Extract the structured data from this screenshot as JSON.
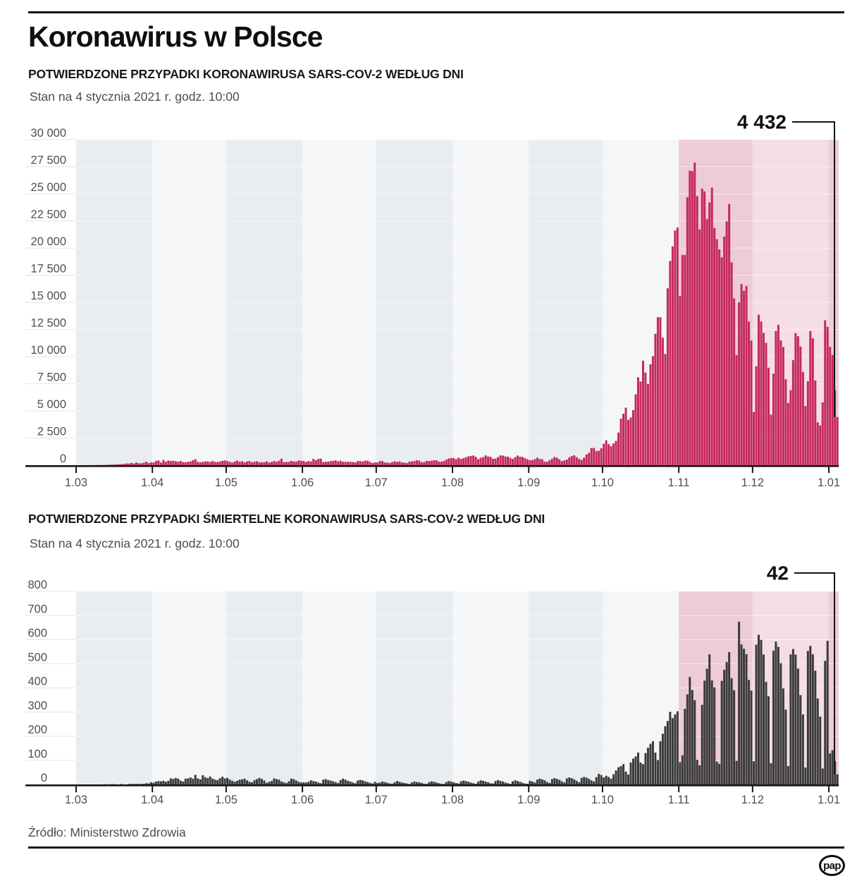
{
  "page": {
    "title": "Koronawirus w Polsce",
    "source": "Źródło: Ministerstwo Zdrowia",
    "logo_text": "pap"
  },
  "chart_data": [
    {
      "type": "bar",
      "title": "POTWIERDZONE PRZYPADKI KORONAWIRUSA SARS-COV-2 WEDŁUG DNI",
      "subtitle": "Stan na 4 stycznia 2021 r. godz. 10:00",
      "annotation": "4 432",
      "ylim": [
        0,
        30000
      ],
      "y_step": 2500,
      "y_tick_labels": [
        "0",
        "2 500",
        "5 000",
        "7 500",
        "10 000",
        "12 500",
        "15 000",
        "17 500",
        "20 000",
        "22 500",
        "25 000",
        "27 500",
        "30 000"
      ],
      "x_tick_labels": [
        "1.03",
        "1.04",
        "1.05",
        "1.06",
        "1.07",
        "1.08",
        "1.09",
        "1.10",
        "1.11",
        "1.12",
        "1.01"
      ],
      "month_days": [
        31,
        30,
        31,
        30,
        31,
        31,
        30,
        31,
        30,
        31,
        4
      ],
      "month_band_colors": [
        "#e9edf0",
        "#f5f6f8",
        "#e9edf0",
        "#f5f6f8",
        "#e9edf0",
        "#f5f6f8",
        "#e9edf0",
        "#f5f6f8",
        "#edccd5",
        "#f4dde4",
        "#edccd5"
      ],
      "bar_color": "#c5285c",
      "grid_on": true,
      "legend": "none",
      "values": [
        0,
        0,
        0,
        1,
        1,
        3,
        5,
        11,
        8,
        19,
        17,
        21,
        33,
        38,
        52,
        60,
        69,
        78,
        98,
        115,
        158,
        150,
        206,
        152,
        249,
        170,
        168,
        224,
        324,
        193,
        256,
        243,
        392,
        437,
        244,
        475,
        311,
        435,
        380,
        401,
        370,
        318,
        388,
        286,
        268,
        313,
        336,
        461,
        545,
        306,
        263,
        300,
        347,
        342,
        294,
        381,
        306,
        285,
        339,
        392,
        437,
        378,
        306,
        235,
        340,
        425,
        315,
        363,
        255,
        345,
        383,
        273,
        321,
        364,
        277,
        268,
        272,
        356,
        235,
        305,
        383,
        306,
        404,
        595,
        276,
        299,
        305,
        399,
        343,
        336,
        436,
        416,
        383,
        300,
        379,
        337,
        576,
        456,
        575,
        599,
        283,
        319,
        331,
        379,
        397,
        440,
        350,
        407,
        317,
        313,
        314,
        304,
        293,
        256,
        382,
        374,
        339,
        418,
        410,
        305,
        193,
        267,
        239,
        380,
        371,
        257,
        231,
        193,
        279,
        355,
        306,
        344,
        257,
        234,
        191,
        328,
        352,
        380,
        458,
        423,
        279,
        275,
        399,
        382,
        417,
        449,
        458,
        337,
        326,
        382,
        512,
        615,
        657,
        658,
        548,
        680,
        572,
        640,
        726,
        809,
        843,
        892,
        762,
        551,
        682,
        731,
        903,
        795,
        767,
        584,
        605,
        749,
        903,
        879,
        800,
        786,
        674,
        571,
        737,
        887,
        785,
        758,
        646,
        552,
        454,
        471,
        554,
        691,
        574,
        538,
        330,
        312,
        463,
        594,
        757,
        693,
        538,
        377,
        436,
        512,
        711,
        837,
        910,
        736,
        574,
        489,
        688,
        974,
        1136,
        1584,
        1587,
        1306,
        1326,
        1552,
        1967,
        2292,
        1934,
        1741,
        2006,
        2236,
        3003,
        4280,
        4739,
        5300,
        4178,
        4394,
        5068,
        6526,
        8099,
        7705,
        9622,
        8536,
        7482,
        9291,
        10040,
        12107,
        13632,
        13628,
        11742,
        10241,
        16300,
        18820,
        20156,
        21629,
        21897,
        15578,
        19364,
        19365,
        24692,
        27143,
        27086,
        27875,
        24785,
        21713,
        25484,
        25221,
        22683,
        24213,
        25571,
        21854,
        20816,
        19883,
        19152,
        21060,
        22464,
        24051,
        18687,
        15362,
        10139,
        15002,
        16687,
        16060,
        16511,
        13236,
        11483,
        4896,
        9105,
        13855,
        13239,
        12190,
        11267,
        8977,
        4654,
        8425,
        12361,
        12930,
        11497,
        10896,
        7914,
        5734,
        6907,
        9673,
        12168,
        11879,
        10937,
        8594,
        5448,
        7731,
        12361,
        11692,
        7800,
        3941,
        3661,
        5782,
        13350,
        12748,
        10896,
        10144,
        6919,
        4432
      ]
    },
    {
      "type": "bar",
      "title": "POTWIERDZONE PRZYPADKI ŚMIERTELNE KORONAWIRUSA SARS-COV-2 WEDŁUG DNI",
      "subtitle": "Stan na 4 stycznia 2021 r. godz. 10:00",
      "annotation": "42",
      "ylim": [
        0,
        800
      ],
      "y_step": 100,
      "y_tick_labels": [
        "0",
        "100",
        "200",
        "300",
        "400",
        "500",
        "600",
        "700",
        "800"
      ],
      "x_tick_labels": [
        "1.03",
        "1.04",
        "1.05",
        "1.06",
        "1.07",
        "1.08",
        "1.09",
        "1.10",
        "1.11",
        "1.12",
        "1.01"
      ],
      "month_days": [
        31,
        30,
        31,
        30,
        31,
        31,
        30,
        31,
        30,
        31,
        4
      ],
      "month_band_colors": [
        "#e9edf0",
        "#f5f6f8",
        "#e9edf0",
        "#f5f6f8",
        "#e9edf0",
        "#f5f6f8",
        "#e9edf0",
        "#f5f6f8",
        "#edccd5",
        "#f4dde4",
        "#edccd5"
      ],
      "bar_color": "#3a3a3a",
      "grid_on": true,
      "legend": "none",
      "values": [
        0,
        0,
        0,
        0,
        0,
        0,
        0,
        0,
        0,
        0,
        0,
        1,
        0,
        1,
        1,
        1,
        0,
        0,
        2,
        0,
        0,
        2,
        2,
        2,
        2,
        2,
        2,
        3,
        5,
        4,
        9,
        7,
        12,
        14,
        13,
        15,
        11,
        15,
        25,
        23,
        27,
        24,
        16,
        12,
        24,
        25,
        29,
        24,
        40,
        25,
        21,
        38,
        30,
        26,
        33,
        24,
        20,
        18,
        26,
        32,
        25,
        27,
        20,
        15,
        11,
        15,
        20,
        21,
        24,
        17,
        11,
        9,
        18,
        22,
        27,
        23,
        16,
        7,
        11,
        14,
        25,
        22,
        20,
        12,
        9,
        6,
        13,
        24,
        22,
        16,
        11,
        8,
        9,
        8,
        11,
        17,
        14,
        12,
        8,
        5,
        20,
        22,
        18,
        16,
        13,
        10,
        6,
        18,
        24,
        20,
        15,
        12,
        8,
        5,
        16,
        19,
        17,
        13,
        10,
        7,
        4,
        11,
        6,
        8,
        12,
        10,
        7,
        4,
        3,
        9,
        14,
        11,
        8,
        6,
        4,
        2,
        8,
        12,
        10,
        9,
        6,
        3,
        2,
        9,
        13,
        11,
        8,
        5,
        3,
        2,
        10,
        14,
        12,
        9,
        6,
        4,
        13,
        16,
        14,
        11,
        8,
        5,
        3,
        12,
        17,
        15,
        12,
        9,
        5,
        4,
        14,
        18,
        15,
        12,
        8,
        5,
        3,
        13,
        17,
        14,
        11,
        7,
        4,
        3,
        15,
        12,
        8,
        20,
        24,
        21,
        17,
        10,
        6,
        22,
        26,
        23,
        19,
        13,
        8,
        25,
        29,
        26,
        21,
        15,
        9,
        27,
        31,
        28,
        23,
        17,
        12,
        30,
        44,
        39,
        29,
        36,
        31,
        24,
        42,
        58,
        71,
        76,
        84,
        53,
        41,
        91,
        107,
        116,
        132,
        91,
        84,
        130,
        152,
        168,
        179,
        132,
        101,
        179,
        210,
        241,
        263,
        301,
        275,
        290,
        303,
        92,
        121,
        313,
        373,
        445,
        391,
        349,
        102,
        79,
        330,
        430,
        479,
        539,
        431,
        402,
        94,
        85,
        429,
        475,
        507,
        548,
        440,
        390,
        98,
        674,
        580,
        562,
        540,
        433,
        389,
        96,
        579,
        620,
        599,
        538,
        425,
        365,
        88,
        554,
        592,
        570,
        502,
        398,
        310,
        76,
        539,
        561,
        538,
        480,
        370,
        290,
        70,
        553,
        574,
        539,
        471,
        356,
        281,
        66,
        512,
        595,
        129,
        142,
        97,
        42
      ]
    }
  ]
}
